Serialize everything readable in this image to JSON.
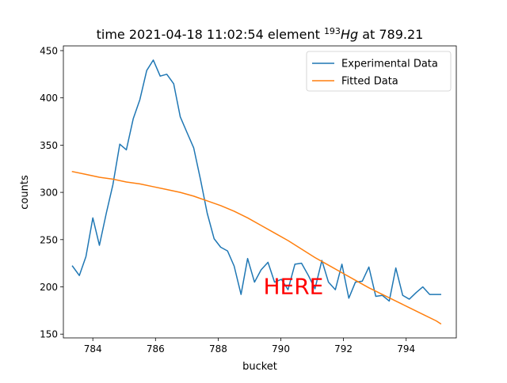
{
  "chart_data": {
    "type": "line",
    "title": {
      "prefix": "time 2021-04-18 11:02:54 element ",
      "superscript": "193",
      "italic": "Hg",
      "suffix": " at 789.21"
    },
    "xlabel": "bucket",
    "ylabel": "counts",
    "xlim": [
      83.06,
      795.6
    ],
    "ylim": [
      146.0,
      455.0
    ],
    "xticks": [
      784,
      786,
      788,
      790,
      792,
      794
    ],
    "yticks": [
      150,
      200,
      250,
      300,
      350,
      400,
      450
    ],
    "grid": false,
    "legend_position": "top-right",
    "annotation": {
      "text": "HERE",
      "x": 790.2,
      "y": 200,
      "color": "#ff0000"
    },
    "series": [
      {
        "name": "Experimental Data",
        "color": "#1f77b4",
        "x": [
          783.35,
          783.57,
          783.78,
          784.0,
          784.21,
          784.43,
          784.64,
          784.86,
          785.07,
          785.29,
          785.5,
          785.72,
          785.93,
          786.15,
          786.36,
          786.58,
          786.79,
          787.01,
          787.22,
          787.44,
          787.65,
          787.87,
          788.08,
          788.3,
          788.51,
          788.73,
          788.94,
          789.16,
          789.37,
          789.59,
          789.8,
          790.02,
          790.23,
          790.45,
          790.66,
          790.88,
          791.09,
          791.31,
          791.52,
          791.74,
          791.95,
          792.17,
          792.38,
          792.6,
          792.81,
          793.03,
          793.24,
          793.46,
          793.67,
          793.89,
          794.1,
          794.32,
          794.53,
          794.75,
          794.96,
          795.1
        ],
        "values": [
          222,
          212,
          232,
          273,
          244,
          278,
          308,
          351,
          345,
          378,
          398,
          429,
          440,
          423,
          425,
          415,
          380,
          363,
          347,
          313,
          278,
          251,
          242,
          238,
          222,
          192,
          230,
          205,
          218,
          226,
          205,
          208,
          197,
          224,
          225,
          212,
          198,
          228,
          205,
          197,
          224,
          188,
          205,
          206,
          221,
          190,
          191,
          185,
          220,
          191,
          187,
          194,
          200,
          192,
          192,
          192
        ]
      },
      {
        "name": "Fitted Data",
        "color": "#ff7f0e",
        "x": [
          783.35,
          783.78,
          784.21,
          784.64,
          785.07,
          785.5,
          785.93,
          786.36,
          786.79,
          787.22,
          787.65,
          788.08,
          788.51,
          788.94,
          789.37,
          789.8,
          790.23,
          790.66,
          791.09,
          791.52,
          791.95,
          792.38,
          792.81,
          793.24,
          793.67,
          794.1,
          794.53,
          794.96,
          795.1
        ],
        "values": [
          322,
          319,
          316,
          314,
          311,
          309,
          306,
          303,
          300,
          296,
          291,
          286,
          280,
          273,
          265,
          257,
          249,
          240,
          231,
          223,
          215,
          207,
          199,
          192,
          185,
          178,
          171,
          164,
          161
        ]
      }
    ]
  }
}
